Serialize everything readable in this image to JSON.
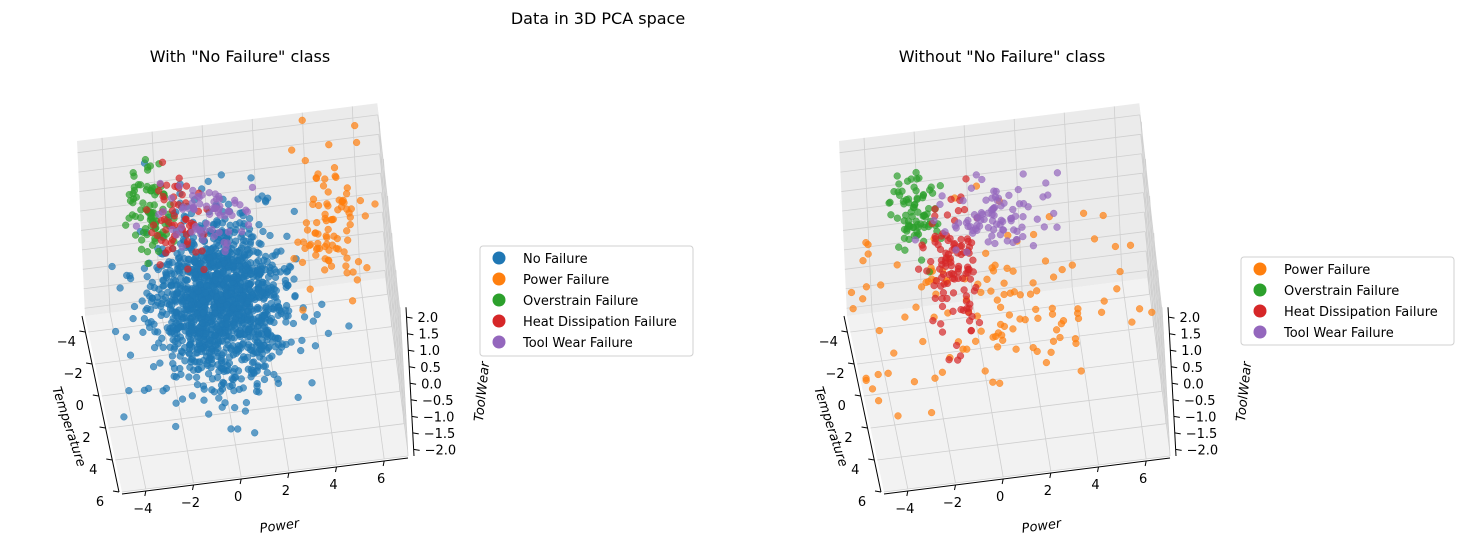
{
  "figure": {
    "suptitle": "Data in 3D PCA space"
  },
  "chart_data": [
    {
      "type": "scatter",
      "projection": "3d",
      "title": "With \"No Failure\" class",
      "xlabel": "$Power$",
      "ylabel": "$Temperature$",
      "zlabel": "$ToolWear$",
      "xlim": [
        -5,
        7
      ],
      "ylim": [
        -5,
        6
      ],
      "zlim": [
        -2.2,
        2.3
      ],
      "xticks": [
        "−4",
        "−2",
        "0",
        "2",
        "4",
        "6"
      ],
      "yticks": [
        "−4",
        "−2",
        "0",
        "2",
        "4",
        "6"
      ],
      "zticks": [
        "−2.0",
        "−1.5",
        "−1.0",
        "−0.5",
        "0.0",
        "0.5",
        "1.0",
        "1.5",
        "2.0"
      ],
      "grid": true,
      "legend": "right",
      "series": [
        {
          "name": "No Failure",
          "color": "#1f77b4",
          "n": 1400,
          "center": [
            0,
            0,
            0
          ],
          "spread": [
            1.35,
            1.4,
            0.9
          ]
        },
        {
          "name": "Power Failure",
          "color": "#ff7f0e",
          "n": 90,
          "center": [
            4.8,
            -3.0,
            0.2
          ],
          "spread": [
            0.7,
            1.4,
            1.0
          ]
        },
        {
          "name": "Overstrain Failure",
          "color": "#2ca02c",
          "n": 80,
          "center": [
            -2.5,
            -3.0,
            1.2
          ],
          "spread": [
            0.5,
            0.9,
            0.45
          ]
        },
        {
          "name": "Heat Dissipation Failure",
          "color": "#d62728",
          "n": 60,
          "center": [
            -1.5,
            -2.0,
            1.3
          ],
          "spread": [
            0.6,
            0.9,
            0.5
          ]
        },
        {
          "name": "Tool Wear Failure",
          "color": "#9467bd",
          "n": 70,
          "center": [
            0.0,
            -2.0,
            1.4
          ],
          "spread": [
            1.1,
            0.6,
            0.4
          ]
        }
      ]
    },
    {
      "type": "scatter",
      "projection": "3d",
      "title": "Without \"No Failure\" class",
      "xlabel": "$Power$",
      "ylabel": "$Temperature$",
      "zlabel": "$ToolWear$",
      "xlim": [
        -5,
        7
      ],
      "ylim": [
        -5,
        6
      ],
      "zlim": [
        -2.2,
        2.3
      ],
      "xticks": [
        "−4",
        "−2",
        "0",
        "2",
        "4",
        "6"
      ],
      "yticks": [
        "−4",
        "−2",
        "0",
        "2",
        "4",
        "6"
      ],
      "zticks": [
        "−2.0",
        "−1.5",
        "−1.0",
        "−0.5",
        "0.0",
        "0.5",
        "1.0",
        "1.5",
        "2.0"
      ],
      "grid": true,
      "legend": "right",
      "series": [
        {
          "name": "Power Failure",
          "color": "#ff7f0e",
          "n": 130,
          "center": [
            0.5,
            -1.0,
            -0.5
          ],
          "spread": [
            2.8,
            2.2,
            0.9
          ]
        },
        {
          "name": "Overstrain Failure",
          "color": "#2ca02c",
          "n": 80,
          "center": [
            -2.2,
            -3.0,
            1.1
          ],
          "spread": [
            0.5,
            0.9,
            0.45
          ]
        },
        {
          "name": "Heat Dissipation Failure",
          "color": "#d62728",
          "n": 110,
          "center": [
            -1.0,
            -1.5,
            0.3
          ],
          "spread": [
            0.6,
            1.0,
            0.9
          ]
        },
        {
          "name": "Tool Wear Failure",
          "color": "#9467bd",
          "n": 90,
          "center": [
            1.0,
            -2.2,
            1.2
          ],
          "spread": [
            1.2,
            0.5,
            0.4
          ]
        }
      ]
    }
  ]
}
